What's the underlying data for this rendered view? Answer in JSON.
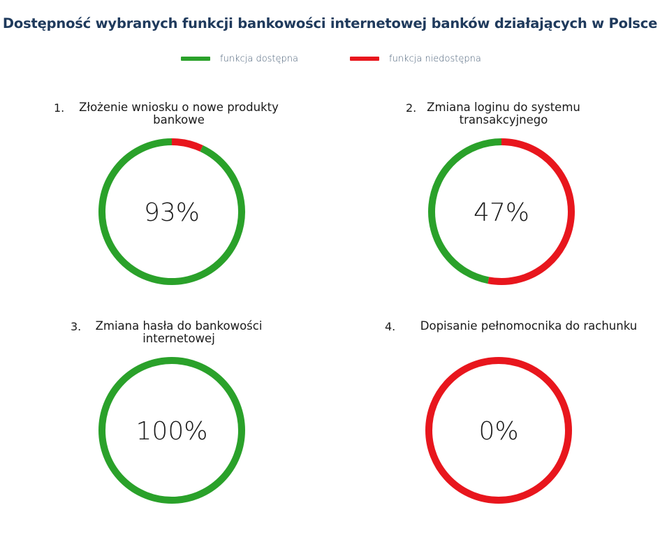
{
  "title": "Dostępność wybranych funkcji bankowości internetowej banków działających w Polsce",
  "legend": {
    "available": {
      "label": "funkcja dostępna",
      "color": "#2aa12a"
    },
    "unavailable": {
      "label": "funkcja niedostępna",
      "color": "#e8161d"
    }
  },
  "chart_data": {
    "type": "pie",
    "title": "Dostępność wybranych funkcji bankowości internetowej banków działających w Polsce",
    "series_names": [
      "funkcja dostępna",
      "funkcja niedostępna"
    ],
    "colors": {
      "available": "#2aa12a",
      "unavailable": "#e8161d"
    },
    "charts": [
      {
        "number": "1.",
        "title_lines": [
          "Złożenie wniosku o nowe produkty",
          "bankowe"
        ],
        "value": 93,
        "value_label": "93%"
      },
      {
        "number": "2.",
        "title_lines": [
          "Zmiana loginu do systemu",
          "transakcyjnego"
        ],
        "value": 47,
        "value_label": "47%"
      },
      {
        "number": "3.",
        "title_lines": [
          "Zmiana hasła do bankowości",
          "internetowej"
        ],
        "value": 100,
        "value_label": "100%"
      },
      {
        "number": "4.",
        "title_lines": [
          "Dopisanie pełnomocnika do rachunku"
        ],
        "value": 0,
        "value_label": "0%"
      }
    ]
  }
}
